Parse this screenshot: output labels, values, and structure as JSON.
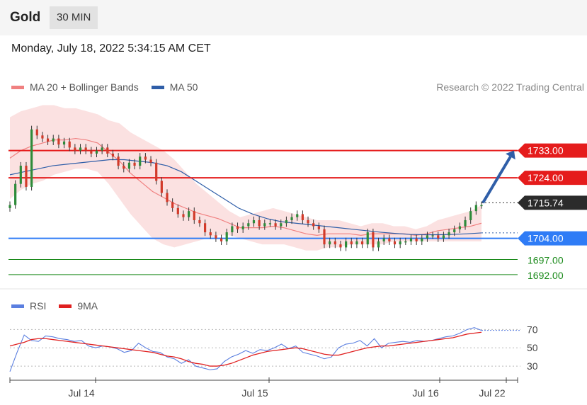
{
  "header": {
    "instrument": "Gold",
    "timeframe": "30 MIN"
  },
  "datetime": "Monday, July 18, 2022 5:34:15 AM CET",
  "legend": {
    "ma20": {
      "label": "MA 20 + Bollinger Bands",
      "color": "#f08080"
    },
    "ma50": {
      "label": "MA 50",
      "color": "#2f5ea8"
    }
  },
  "credit": "Research © 2022 Trading Central",
  "rsi_legend": {
    "rsi": {
      "label": "RSI",
      "color": "#5b7fe0"
    },
    "ma9": {
      "label": "9MA",
      "color": "#e02020"
    }
  },
  "chart_data": [
    {
      "type": "candlestick",
      "title": "Gold",
      "x_labels": [
        "Jul 14",
        "Jul 15",
        "Jul 16",
        "Jul 22"
      ],
      "ylim": [
        1688,
        1750
      ],
      "current_price": 1715.74,
      "levels": [
        {
          "value": 1733.0,
          "label": "1733.00",
          "kind": "resistance",
          "color": "#e51c1c"
        },
        {
          "value": 1724.0,
          "label": "1724.00",
          "kind": "resistance",
          "color": "#e51c1c"
        },
        {
          "value": 1704.0,
          "label": "1704.00",
          "kind": "pivot",
          "color": "#2f7cf6"
        },
        {
          "value": 1697.0,
          "label": "1697.00",
          "kind": "target",
          "color": "#1a8a1a"
        },
        {
          "value": 1692.0,
          "label": "1692.00",
          "kind": "target",
          "color": "#1a8a1a"
        }
      ],
      "forecast_arrow": {
        "from": 1715.74,
        "to": 1733.0
      },
      "closes": [
        1715,
        1722,
        1728,
        1721,
        1740,
        1738,
        1737,
        1736,
        1737,
        1735,
        1736,
        1734,
        1733,
        1734,
        1733,
        1732,
        1733,
        1734,
        1732,
        1731,
        1728,
        1727,
        1729,
        1728,
        1731,
        1730,
        1729,
        1723,
        1719,
        1716,
        1714,
        1712,
        1711,
        1713,
        1710,
        1709,
        1706,
        1705,
        1704,
        1703,
        1706,
        1708,
        1707,
        1708,
        1709,
        1710,
        1708,
        1709,
        1709,
        1708,
        1709,
        1710,
        1711,
        1712,
        1710,
        1709,
        1708,
        1707,
        1702,
        1703,
        1702,
        1701,
        1703,
        1702,
        1703,
        1702,
        1706,
        1701,
        1703,
        1704,
        1703,
        1702,
        1703,
        1703,
        1704,
        1703,
        1704,
        1705,
        1705,
        1704,
        1705,
        1706,
        1707,
        1708,
        1710,
        1713,
        1715,
        1715
      ],
      "bb_upper": [
        1744,
        1746,
        1747,
        1748,
        1748,
        1747,
        1747,
        1746,
        1745,
        1743,
        1742,
        1739,
        1737,
        1735,
        1733,
        1730,
        1726,
        1722,
        1719,
        1716,
        1713,
        1711,
        1712,
        1713,
        1714,
        1713,
        1712,
        1711,
        1710,
        1710,
        1710,
        1709,
        1708,
        1709,
        1709,
        1708,
        1708,
        1707,
        1708,
        1710,
        1711,
        1712,
        1713,
        1715
      ],
      "bb_lower": [
        1717,
        1720,
        1722,
        1723,
        1725,
        1726,
        1727,
        1727,
        1726,
        1722,
        1717,
        1712,
        1708,
        1704,
        1702,
        1701,
        1702,
        1703,
        1704,
        1705,
        1705,
        1704,
        1703,
        1702,
        1702,
        1702,
        1701,
        1700,
        1700,
        1701,
        1701,
        1702,
        1702,
        1702,
        1702,
        1703,
        1703,
        1703,
        1703,
        1703,
        1703,
        1703,
        1703,
        1703
      ],
      "ma50": [
        1725,
        1726,
        1727,
        1728,
        1728.5,
        1729,
        1729.5,
        1730,
        1730,
        1729.5,
        1729,
        1728,
        1726,
        1723,
        1720,
        1717,
        1714,
        1712,
        1710.5,
        1709.5,
        1709,
        1708.5,
        1708,
        1707.5,
        1707,
        1706.5,
        1706,
        1705.6,
        1705.3,
        1705.2,
        1705.2,
        1705.3,
        1705.5,
        1705.8
      ]
    },
    {
      "type": "line",
      "title": "RSI",
      "yticks": [
        30,
        50,
        70
      ],
      "ylim": [
        20,
        78
      ],
      "rsi": [
        24,
        45,
        64,
        58,
        57,
        63,
        62,
        60,
        59,
        57,
        58,
        52,
        50,
        52,
        51,
        49,
        45,
        47,
        55,
        50,
        46,
        45,
        40,
        38,
        33,
        37,
        30,
        28,
        26,
        27,
        35,
        40,
        43,
        47,
        44,
        48,
        47,
        50,
        54,
        49,
        52,
        45,
        43,
        41,
        38,
        40,
        50,
        54,
        55,
        58,
        52,
        60,
        50,
        55,
        56,
        57,
        56,
        58,
        57,
        58,
        60,
        62,
        63,
        66,
        70,
        72,
        69
      ],
      "ma9": [
        52,
        54,
        56,
        59,
        60,
        60,
        59,
        58,
        57,
        56,
        55,
        54,
        53,
        52,
        51,
        50,
        49,
        48,
        47,
        46,
        45,
        43,
        41,
        40,
        38,
        35,
        33,
        32,
        30,
        30,
        31,
        33,
        36,
        39,
        42,
        44,
        46,
        47,
        48,
        49,
        50,
        49,
        47,
        45,
        43,
        42,
        42,
        44,
        46,
        48,
        50,
        51,
        52,
        52,
        53,
        54,
        55,
        56,
        57,
        58,
        59,
        60,
        61,
        63,
        65,
        66,
        67
      ]
    }
  ]
}
